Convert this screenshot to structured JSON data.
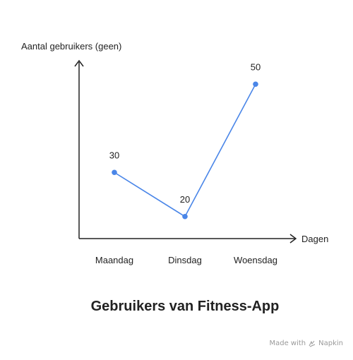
{
  "chart_data": {
    "type": "line",
    "title": "Gebruikers van Fitness-App",
    "xlabel": "Dagen",
    "ylabel": "Aantal gebruikers (geen)",
    "categories": [
      "Maandag",
      "Dinsdag",
      "Woensdag"
    ],
    "series": [
      {
        "values": [
          30,
          20,
          50
        ],
        "color": "#4a86e8"
      }
    ],
    "ylim": [
      15,
      55
    ],
    "grid": false,
    "legend": "none"
  },
  "footer": {
    "made_with": "Made with",
    "brand": "Napkin"
  },
  "colors": {
    "axis": "#222222",
    "series": "#4a86e8",
    "footer_text": "#9a9a9a"
  }
}
